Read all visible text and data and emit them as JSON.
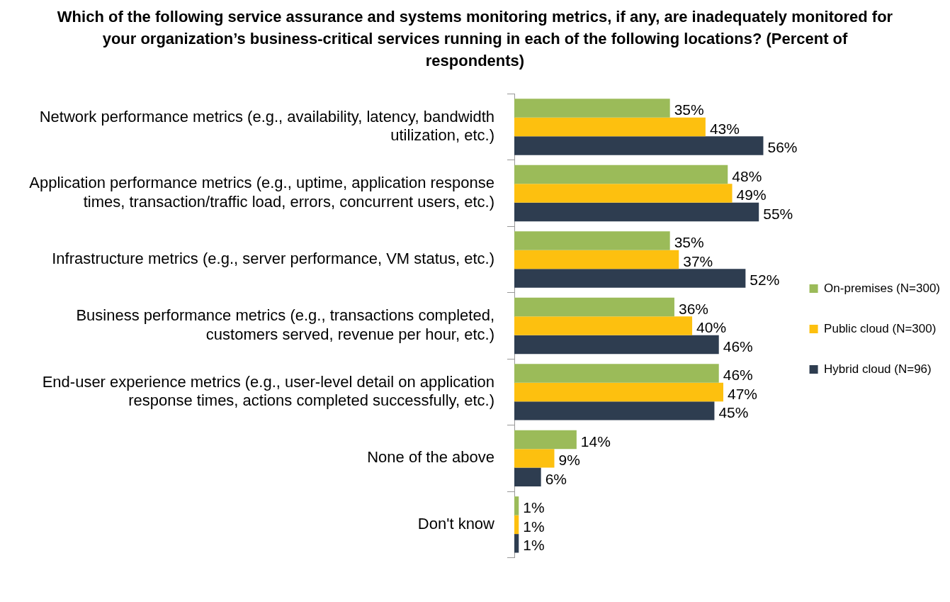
{
  "chart_data": {
    "type": "bar",
    "orientation": "horizontal",
    "title": "Which of the following service assurance and systems monitoring metrics, if any, are inadequately monitored for your organization’s business-critical services running in each of the following locations? (Percent of respondents)",
    "categories": [
      "Network performance metrics (e.g., availability, latency, bandwidth utilization, etc.)",
      "Application performance metrics (e.g., uptime, application response times, transaction/traffic load, errors, concurrent users, etc.)",
      "Infrastructure metrics (e.g., server performance, VM status, etc.)",
      "Business performance metrics (e.g., transactions completed, customers served, revenue per hour, etc.)",
      "End-user experience metrics (e.g., user-level detail on application response times, actions completed successfully, etc.)",
      "None of the above",
      "Don't know"
    ],
    "series": [
      {
        "name": "On-premises (N=300)",
        "color": "#9bbb59",
        "values": [
          35,
          48,
          35,
          36,
          46,
          14,
          1
        ],
        "value_labels": [
          "35%",
          "48%",
          "35%",
          "36%",
          "46%",
          "14%",
          "1%"
        ]
      },
      {
        "name": "Public cloud (N=300)",
        "color": "#fdc00f",
        "values": [
          43,
          49,
          37,
          40,
          47,
          9,
          1
        ],
        "value_labels": [
          "43%",
          "49%",
          "37%",
          "40%",
          "47%",
          "9%",
          "1%"
        ]
      },
      {
        "name": "Hybrid cloud (N=96)",
        "color": "#2e3d50",
        "values": [
          56,
          55,
          52,
          46,
          45,
          6,
          1
        ],
        "value_labels": [
          "56%",
          "55%",
          "52%",
          "46%",
          "45%",
          "6%",
          "1%"
        ]
      }
    ],
    "grid": false,
    "legend": "right",
    "tick_labels": "y"
  }
}
